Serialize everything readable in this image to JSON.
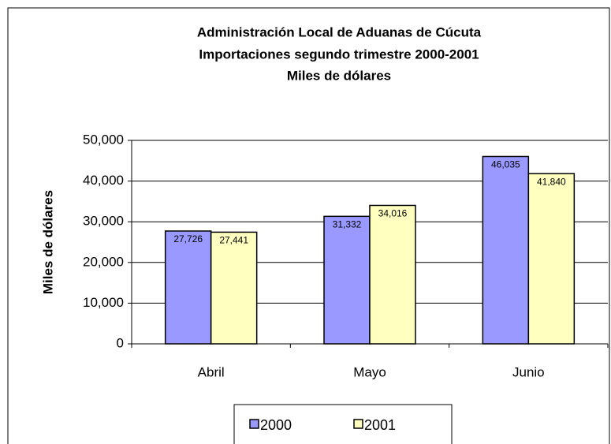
{
  "chart_data": {
    "type": "bar",
    "title": [
      "Administración Local de Aduanas de Cúcuta",
      "Importaciones segundo trimestre 2000-2001",
      "Miles de dólares"
    ],
    "y_label": "Miles de dólares",
    "categories": [
      "Abril",
      "Mayo",
      "Junio"
    ],
    "series": [
      {
        "name": "2000",
        "color": "#9999ff",
        "values": [
          27726,
          31332,
          46035
        ],
        "value_labels": [
          "27,726",
          "31,332",
          "46,035"
        ]
      },
      {
        "name": "2001",
        "color": "#ffffc0",
        "values": [
          27441,
          34016,
          41840
        ],
        "value_labels": [
          "27,441",
          "34,016",
          "41,840"
        ]
      }
    ],
    "ylim": [
      0,
      50000
    ],
    "yticks": [
      0,
      {
        "value": 10000,
        "label": "10,000"
      },
      {
        "value": 20000,
        "label": "20,000"
      },
      {
        "value": 30000,
        "label": "30,000"
      },
      {
        "value": 40000,
        "label": "40,000"
      },
      {
        "value": 50000,
        "label": "50,000"
      }
    ],
    "grid": true,
    "legend": "bottom"
  }
}
